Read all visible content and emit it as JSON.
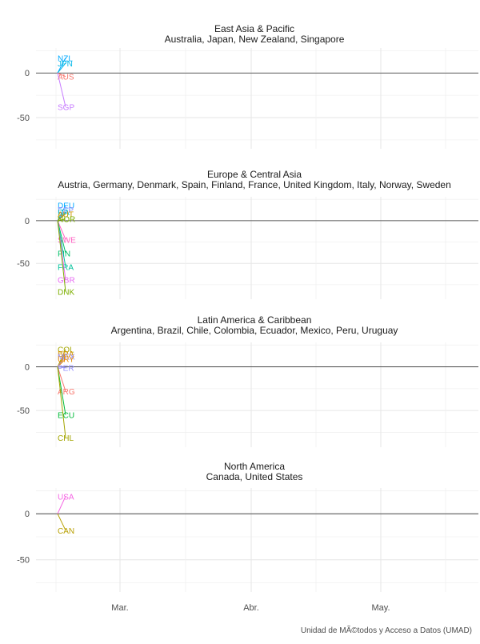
{
  "caption": "Unidad de MÃ©todos y Acceso a Datos (UMAD)",
  "chart_data": [
    {
      "type": "line",
      "title": "East Asia & Pacific",
      "subtitle": "Australia, Japan, New Zealand, Singapore",
      "y_ticks": [
        0,
        -50
      ],
      "ylim": [
        -85,
        28
      ],
      "x_ticks": [
        "Mar.",
        "Abr.",
        "May."
      ],
      "series": [
        {
          "name": "NZL",
          "color": "#00a9ff",
          "values": [
            0,
            17
          ]
        },
        {
          "name": "JPN",
          "color": "#00b8e7",
          "values": [
            0,
            11
          ]
        },
        {
          "name": "AUS",
          "color": "#f8766d",
          "values": [
            0,
            -4
          ]
        },
        {
          "name": "SGP",
          "color": "#c77cff",
          "values": [
            0,
            -38
          ]
        }
      ]
    },
    {
      "type": "line",
      "title": "Europe & Central Asia",
      "subtitle": "Austria, Germany, Denmark, Spain, Finland, France, United Kingdom, Italy, Norway, Sweden",
      "y_ticks": [
        0,
        -50
      ],
      "ylim": [
        -92,
        28
      ],
      "x_ticks": [
        "Mar.",
        "Abr.",
        "May."
      ],
      "series": [
        {
          "name": "DEU",
          "color": "#00a9ff",
          "values": [
            0,
            18
          ]
        },
        {
          "name": "ESP",
          "color": "#8c8cff",
          "values": [
            0,
            13
          ]
        },
        {
          "name": "ITA",
          "color": "#00bfc4",
          "values": [
            0,
            10
          ]
        },
        {
          "name": "AUT",
          "color": "#cd9600",
          "values": [
            0,
            8
          ]
        },
        {
          "name": "NOR",
          "color": "#7cae00",
          "values": [
            0,
            2
          ]
        },
        {
          "name": "SWE",
          "color": "#ff61c3",
          "values": [
            0,
            -22
          ]
        },
        {
          "name": "FIN",
          "color": "#00be67",
          "values": [
            0,
            -38
          ]
        },
        {
          "name": "FRA",
          "color": "#00c19a",
          "values": [
            0,
            -54
          ]
        },
        {
          "name": "GBR",
          "color": "#e76bf3",
          "values": [
            0,
            -69
          ]
        },
        {
          "name": "DNK",
          "color": "#7cae00",
          "values": [
            0,
            -83
          ]
        }
      ]
    },
    {
      "type": "line",
      "title": "Latin America & Caribbean",
      "subtitle": "Argentina, Brazil, Chile, Colombia, Ecuador, Mexico, Peru, Uruguay",
      "y_ticks": [
        0,
        -50
      ],
      "ylim": [
        -92,
        28
      ],
      "x_ticks": [
        "Mar.",
        "Abr.",
        "May."
      ],
      "series": [
        {
          "name": "COL",
          "color": "#a3a500",
          "values": [
            0,
            20
          ]
        },
        {
          "name": "BRA",
          "color": "#d89000",
          "values": [
            0,
            15
          ]
        },
        {
          "name": "MEX",
          "color": "#9590ff",
          "values": [
            0,
            12
          ]
        },
        {
          "name": "URY",
          "color": "#e58700",
          "values": [
            0,
            9
          ]
        },
        {
          "name": "PER",
          "color": "#9590ff",
          "values": [
            0,
            -1
          ]
        },
        {
          "name": "ARG",
          "color": "#f8766d",
          "values": [
            0,
            -28
          ]
        },
        {
          "name": "ECU",
          "color": "#00ba38",
          "values": [
            0,
            -55
          ]
        },
        {
          "name": "CHL",
          "color": "#a3a500",
          "values": [
            0,
            -81
          ]
        }
      ]
    },
    {
      "type": "line",
      "title": "North America",
      "subtitle": "Canada, United States",
      "y_ticks": [
        0,
        -50
      ],
      "ylim": [
        -85,
        28
      ],
      "x_ticks": [
        "Mar.",
        "Abr.",
        "May."
      ],
      "series": [
        {
          "name": "USA",
          "color": "#f564e3",
          "values": [
            0,
            19
          ]
        },
        {
          "name": "CAN",
          "color": "#b79f00",
          "values": [
            0,
            -18
          ]
        }
      ]
    }
  ]
}
